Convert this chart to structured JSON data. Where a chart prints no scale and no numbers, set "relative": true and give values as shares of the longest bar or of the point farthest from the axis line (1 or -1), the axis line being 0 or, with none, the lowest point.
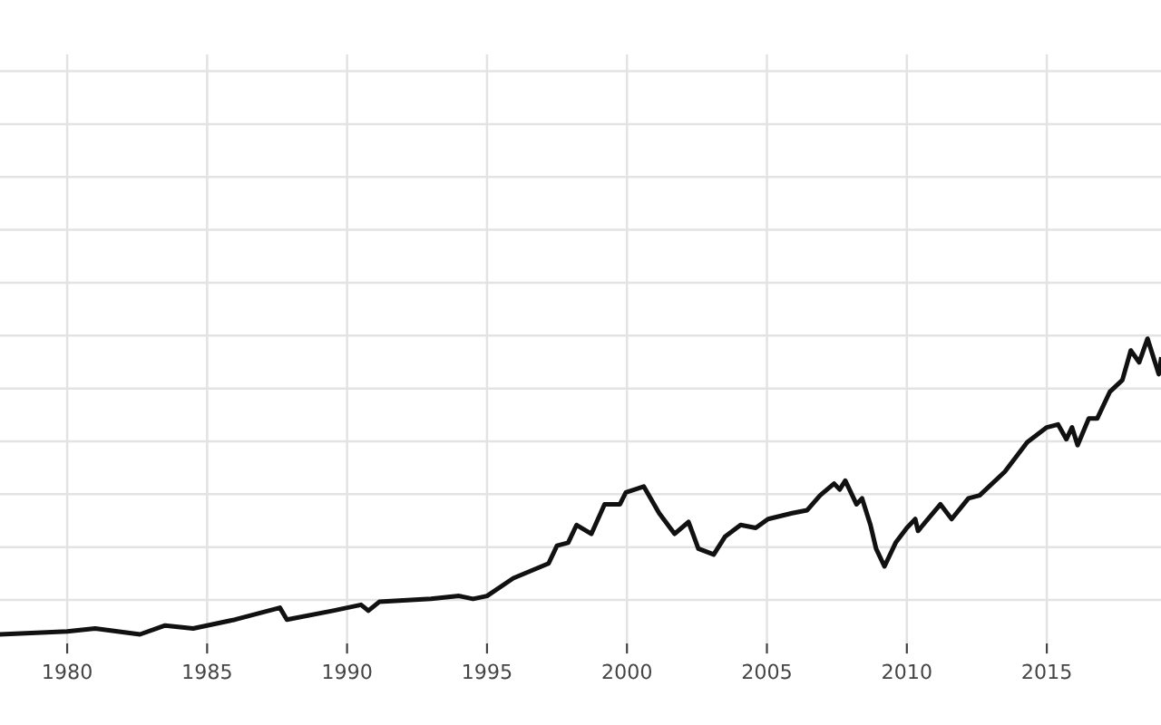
{
  "chart_data": {
    "type": "line",
    "relative": true,
    "grid": true,
    "marker": "none",
    "line_style": "solid",
    "xlim": [
      1977.6,
      2019.08
    ],
    "xticks": [
      1980,
      1985,
      1990,
      1995,
      2000,
      2005,
      2010,
      2015
    ],
    "x": [
      1977.6,
      1980,
      1981,
      1982.6,
      1983.5,
      1984.5,
      1986,
      1987.6,
      1987.85,
      1989.5,
      1990,
      1990.5,
      1990.76,
      1991.15,
      1993,
      1994,
      1994.5,
      1995,
      1995.94,
      1997.2,
      1997.5,
      1997.9,
      1998.2,
      1998.73,
      1999.2,
      1999.75,
      1999.96,
      2000.6,
      2001.15,
      2001.7,
      2002.2,
      2002.55,
      2003.1,
      2003.5,
      2004.06,
      2004.6,
      2005.04,
      2005.9,
      2006.44,
      2006.9,
      2007.4,
      2007.6,
      2007.8,
      2008.2,
      2008.4,
      2008.7,
      2008.9,
      2009.2,
      2009.6,
      2010.0,
      2010.3,
      2010.4,
      2011.2,
      2011.6,
      2012.2,
      2012.6,
      2013.5,
      2014.3,
      2015.0,
      2015.4,
      2015.7,
      2015.9,
      2016.1,
      2016.5,
      2016.8,
      2017.25,
      2017.7,
      2018.0,
      2018.3,
      2018.6,
      2019.0,
      2019.08
    ],
    "series": [
      {
        "color": "#111111",
        "values": [
          0,
          0.01,
          0.02,
          0,
          0.03,
          0.02,
          0.05,
          0.09,
          0.05,
          0.08,
          0.09,
          0.1,
          0.08,
          0.11,
          0.12,
          0.13,
          0.12,
          0.13,
          0.19,
          0.24,
          0.3,
          0.31,
          0.37,
          0.34,
          0.44,
          0.44,
          0.48,
          0.5,
          0.41,
          0.34,
          0.38,
          0.29,
          0.27,
          0.33,
          0.37,
          0.36,
          0.39,
          0.41,
          0.42,
          0.47,
          0.51,
          0.49,
          0.52,
          0.44,
          0.46,
          0.37,
          0.29,
          0.23,
          0.31,
          0.36,
          0.39,
          0.35,
          0.44,
          0.39,
          0.46,
          0.47,
          0.55,
          0.65,
          0.7,
          0.71,
          0.66,
          0.7,
          0.64,
          0.73,
          0.73,
          0.82,
          0.86,
          0.96,
          0.92,
          1.0,
          0.88,
          0.93
        ]
      }
    ]
  }
}
